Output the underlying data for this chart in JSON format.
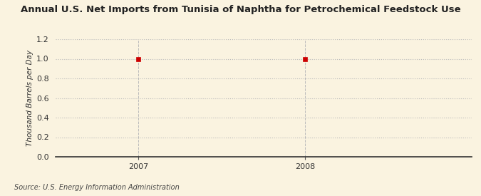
{
  "title": "Annual U.S. Net Imports from Tunisia of Naphtha for Petrochemical Feedstock Use",
  "ylabel": "Thousand Barrels per Day",
  "source": "Source: U.S. Energy Information Administration",
  "x_data": [
    2007,
    2008
  ],
  "y_data": [
    1.0,
    1.0
  ],
  "ylim": [
    0.0,
    1.2
  ],
  "yticks": [
    0.0,
    0.2,
    0.4,
    0.6,
    0.8,
    1.0,
    1.2
  ],
  "xlim": [
    2006.5,
    2009.0
  ],
  "xticks": [
    2007,
    2008
  ],
  "marker_color": "#cc0000",
  "marker_size": 4,
  "grid_color": "#bbbbbb",
  "background_color": "#faf3e0",
  "plot_bg_color": "#faf3e0",
  "title_fontsize": 9.5,
  "label_fontsize": 7.5,
  "tick_fontsize": 8,
  "source_fontsize": 7
}
